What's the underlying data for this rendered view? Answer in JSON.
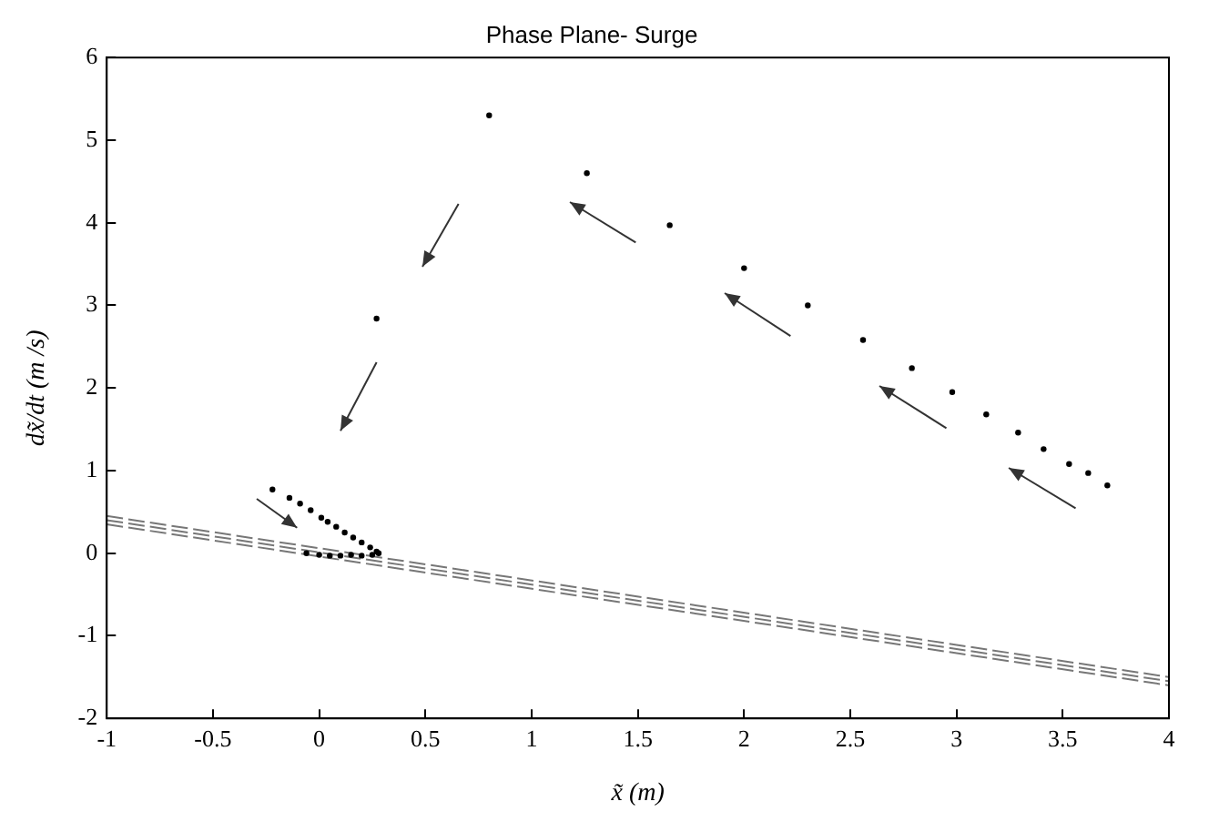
{
  "chart_data": {
    "type": "scatter",
    "title": "Phase Plane- Surge",
    "xlabel": "x̃ (m)",
    "ylabel": "dx̃/dt (m /s)",
    "xlim": [
      -1,
      4
    ],
    "ylim": [
      -2,
      6
    ],
    "xticks": [
      -1,
      -0.5,
      0,
      0.5,
      1,
      1.5,
      2,
      2.5,
      3,
      3.5,
      4
    ],
    "yticks": [
      -2,
      -1,
      0,
      1,
      2,
      3,
      4,
      5,
      6
    ],
    "grid": false,
    "legend": false,
    "series": [
      {
        "color": "#000000",
        "marker": "circle",
        "x": [
          0.8,
          1.26,
          1.65,
          2.0,
          2.3,
          2.56,
          2.79,
          2.98,
          3.14,
          3.29,
          3.41,
          3.53,
          3.62,
          3.71,
          0.27,
          -0.22,
          -0.14,
          -0.09,
          -0.04,
          0.01,
          0.04,
          0.08,
          0.12,
          0.16,
          0.2,
          0.24,
          0.27,
          0.28,
          0.25,
          0.2,
          0.15,
          0.1,
          0.05,
          0,
          -0.06
        ],
        "values": [
          5.3,
          4.6,
          3.97,
          3.45,
          3.0,
          2.58,
          2.24,
          1.95,
          1.68,
          1.46,
          1.26,
          1.08,
          0.97,
          0.82,
          2.84,
          0.77,
          0.67,
          0.6,
          0.52,
          0.43,
          0.38,
          0.32,
          0.25,
          0.19,
          0.13,
          0.07,
          0.02,
          0.0,
          -0.02,
          -0.03,
          -0.02,
          -0.03,
          -0.03,
          -0.02,
          0.0
        ]
      },
      {
        "type": "line",
        "color": "#777777",
        "marker": "none",
        "line_style": "dashed",
        "x": [
          -1,
          4
        ],
        "values": [
          0.45,
          -1.5
        ]
      },
      {
        "type": "line",
        "color": "#777777",
        "marker": "none",
        "line_style": "dashed",
        "x": [
          -1,
          4
        ],
        "values": [
          0.4,
          -1.55
        ]
      },
      {
        "type": "line",
        "color": "#777777",
        "marker": "none",
        "line_style": "dashed",
        "x": [
          -1,
          4
        ],
        "values": [
          0.35,
          -1.6
        ]
      }
    ]
  }
}
